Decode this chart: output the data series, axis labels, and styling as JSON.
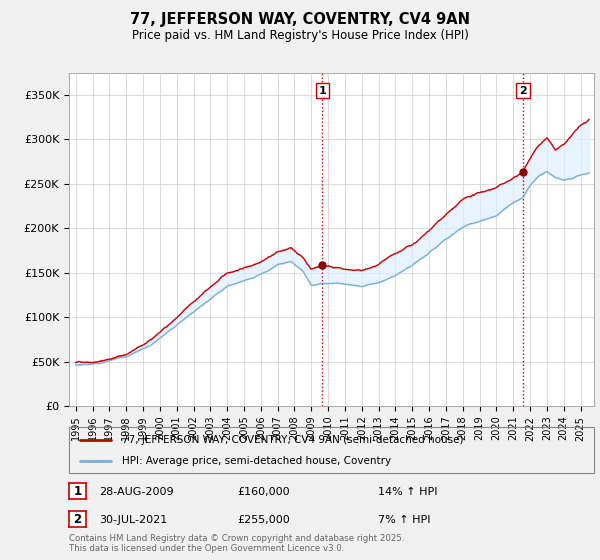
{
  "title": "77, JEFFERSON WAY, COVENTRY, CV4 9AN",
  "subtitle": "Price paid vs. HM Land Registry's House Price Index (HPI)",
  "yticks": [
    0,
    50000,
    100000,
    150000,
    200000,
    250000,
    300000,
    350000
  ],
  "ytick_labels": [
    "£0",
    "£50K",
    "£100K",
    "£150K",
    "£200K",
    "£250K",
    "£300K",
    "£350K"
  ],
  "ylim": [
    0,
    375000
  ],
  "xlim_start": 1994.6,
  "xlim_end": 2025.8,
  "red_line_color": "#cc0000",
  "blue_line_color": "#7ab0d4",
  "fill_color": "#ddeeff",
  "vline_color": "#cc0000",
  "marker1_x": 2009.65,
  "marker1_y": 160000,
  "marker2_x": 2021.58,
  "marker2_y": 255000,
  "sale1_date": "28-AUG-2009",
  "sale1_price": "£160,000",
  "sale1_hpi": "14% ↑ HPI",
  "sale2_date": "30-JUL-2021",
  "sale2_price": "£255,000",
  "sale2_hpi": "7% ↑ HPI",
  "legend_line1": "77, JEFFERSON WAY, COVENTRY, CV4 9AN (semi-detached house)",
  "legend_line2": "HPI: Average price, semi-detached house, Coventry",
  "footnote": "Contains HM Land Registry data © Crown copyright and database right 2025.\nThis data is licensed under the Open Government Licence v3.0.",
  "background_color": "#f0f0f0",
  "plot_bg_color": "#ffffff",
  "grid_color": "#cccccc"
}
